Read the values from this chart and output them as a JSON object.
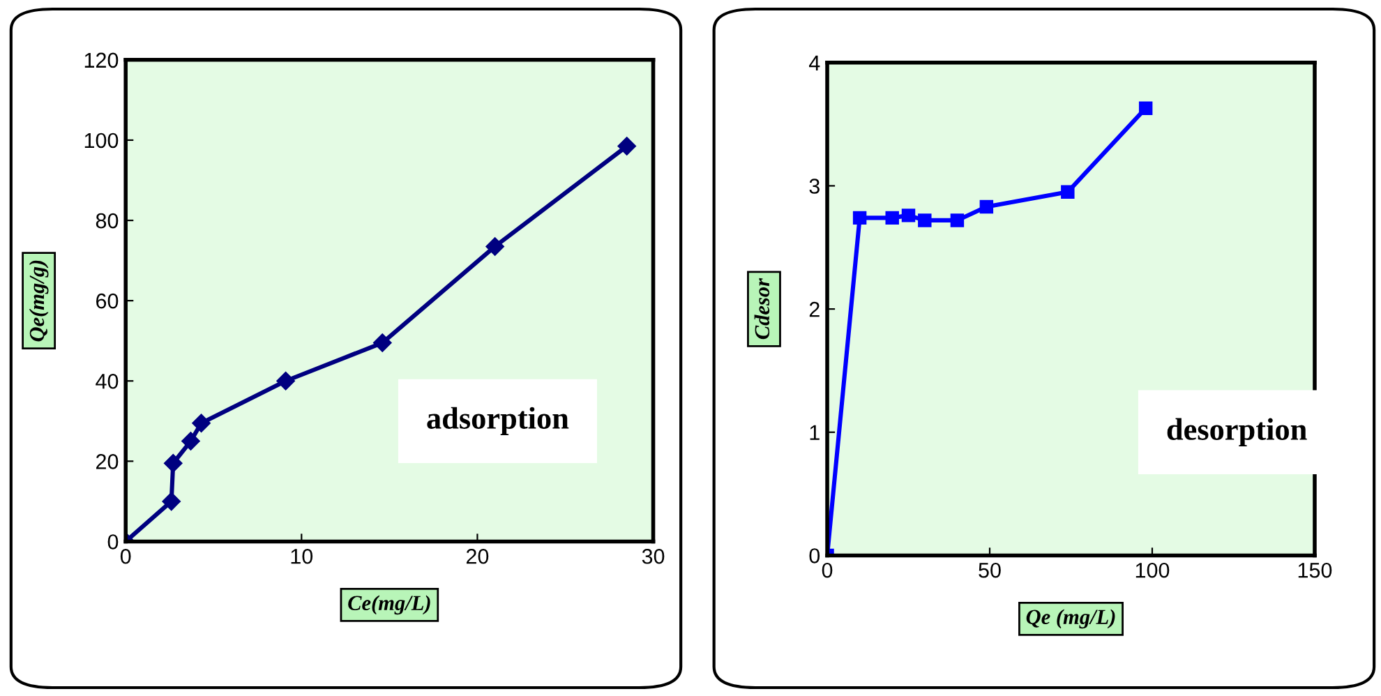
{
  "chart_data": [
    {
      "type": "line",
      "xlabel": "Ce(mg/L)",
      "ylabel": "Qe(mg/g)",
      "annotations": [
        "adsorption"
      ],
      "marker": "diamond",
      "grid": false,
      "legend": false,
      "x": [
        0,
        2.6,
        2.7,
        3.7,
        4.3,
        9.1,
        14.6,
        21,
        28.5
      ],
      "series": [
        {
          "color": "#000080",
          "values": [
            0,
            10,
            19.5,
            25,
            29.5,
            40,
            49.5,
            73.5,
            98.5
          ]
        }
      ],
      "xlim": [
        0,
        30
      ],
      "xticks": [
        0,
        10,
        20,
        30
      ],
      "ylim": [
        0,
        120
      ],
      "yticks": [
        0,
        20,
        40,
        60,
        80,
        100,
        120
      ]
    },
    {
      "type": "line",
      "xlabel": "Qe (mg/L)",
      "ylabel": "Cdesor",
      "annotations": [
        "desorption"
      ],
      "marker": "square",
      "grid": false,
      "legend": false,
      "x": [
        0,
        10,
        20,
        25,
        30,
        40,
        49,
        74,
        98
      ],
      "series": [
        {
          "color": "#0000ff",
          "values": [
            0,
            2.74,
            2.74,
            2.76,
            2.72,
            2.72,
            2.83,
            2.95,
            3.63
          ]
        }
      ],
      "xlim": [
        0,
        150
      ],
      "xticks": [
        0,
        50,
        100,
        150
      ],
      "ylim": [
        0,
        4
      ],
      "yticks": [
        0,
        1,
        2,
        3,
        4
      ]
    }
  ]
}
